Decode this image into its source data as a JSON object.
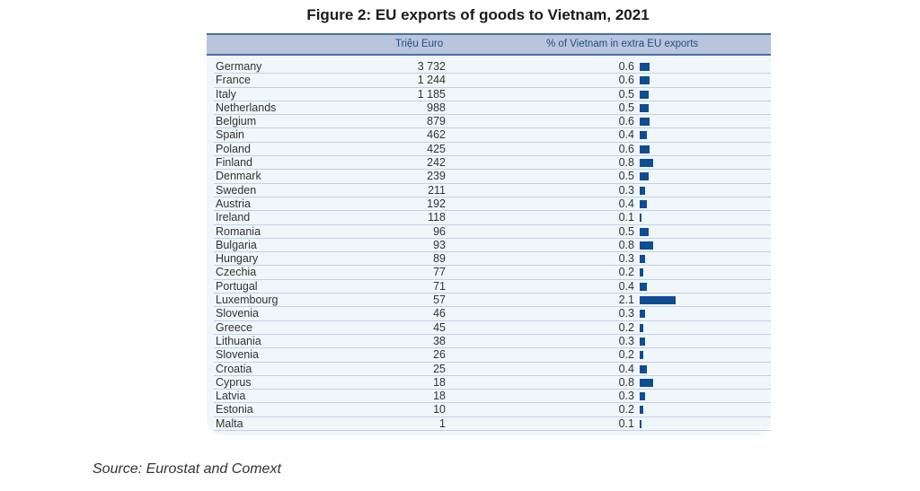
{
  "chart_data": {
    "type": "table",
    "title": "Figure 2: EU exports of goods to Vietnam, 2021",
    "columns": [
      "",
      "Triệu Euro",
      "% of Vietnam in extra EU exports"
    ],
    "rows": [
      {
        "country": "Germany",
        "value": "3 732",
        "pct": 0.6
      },
      {
        "country": "France",
        "value": "1 244",
        "pct": 0.6
      },
      {
        "country": "Italy",
        "value": "1 185",
        "pct": 0.5
      },
      {
        "country": "Netherlands",
        "value": "988",
        "pct": 0.5
      },
      {
        "country": "Belgium",
        "value": "879",
        "pct": 0.6
      },
      {
        "country": "Spain",
        "value": "462",
        "pct": 0.4
      },
      {
        "country": "Poland",
        "value": "425",
        "pct": 0.6
      },
      {
        "country": "Finland",
        "value": "242",
        "pct": 0.8
      },
      {
        "country": "Denmark",
        "value": "239",
        "pct": 0.5
      },
      {
        "country": "Sweden",
        "value": "211",
        "pct": 0.3
      },
      {
        "country": "Austria",
        "value": "192",
        "pct": 0.4
      },
      {
        "country": "Ireland",
        "value": "118",
        "pct": 0.1
      },
      {
        "country": "Romania",
        "value": "96",
        "pct": 0.5
      },
      {
        "country": "Bulgaria",
        "value": "93",
        "pct": 0.8
      },
      {
        "country": "Hungary",
        "value": "89",
        "pct": 0.3
      },
      {
        "country": "Czechia",
        "value": "77",
        "pct": 0.2
      },
      {
        "country": "Portugal",
        "value": "71",
        "pct": 0.4
      },
      {
        "country": "Luxembourg",
        "value": "57",
        "pct": 2.1
      },
      {
        "country": "Slovenia",
        "value": "46",
        "pct": 0.3
      },
      {
        "country": "Greece",
        "value": "45",
        "pct": 0.2
      },
      {
        "country": "Lithuania",
        "value": "38",
        "pct": 0.3
      },
      {
        "country": "Slovenia",
        "value": "26",
        "pct": 0.2
      },
      {
        "country": "Croatia",
        "value": "25",
        "pct": 0.4
      },
      {
        "country": "Cyprus",
        "value": "18",
        "pct": 0.8
      },
      {
        "country": "Latvia",
        "value": "18",
        "pct": 0.3
      },
      {
        "country": "Estonia",
        "value": "10",
        "pct": 0.2
      },
      {
        "country": "Malta",
        "value": "1",
        "pct": 0.1
      }
    ],
    "bar_color": "#0e4d92"
  },
  "source": "Source: Eurostat and Comext"
}
